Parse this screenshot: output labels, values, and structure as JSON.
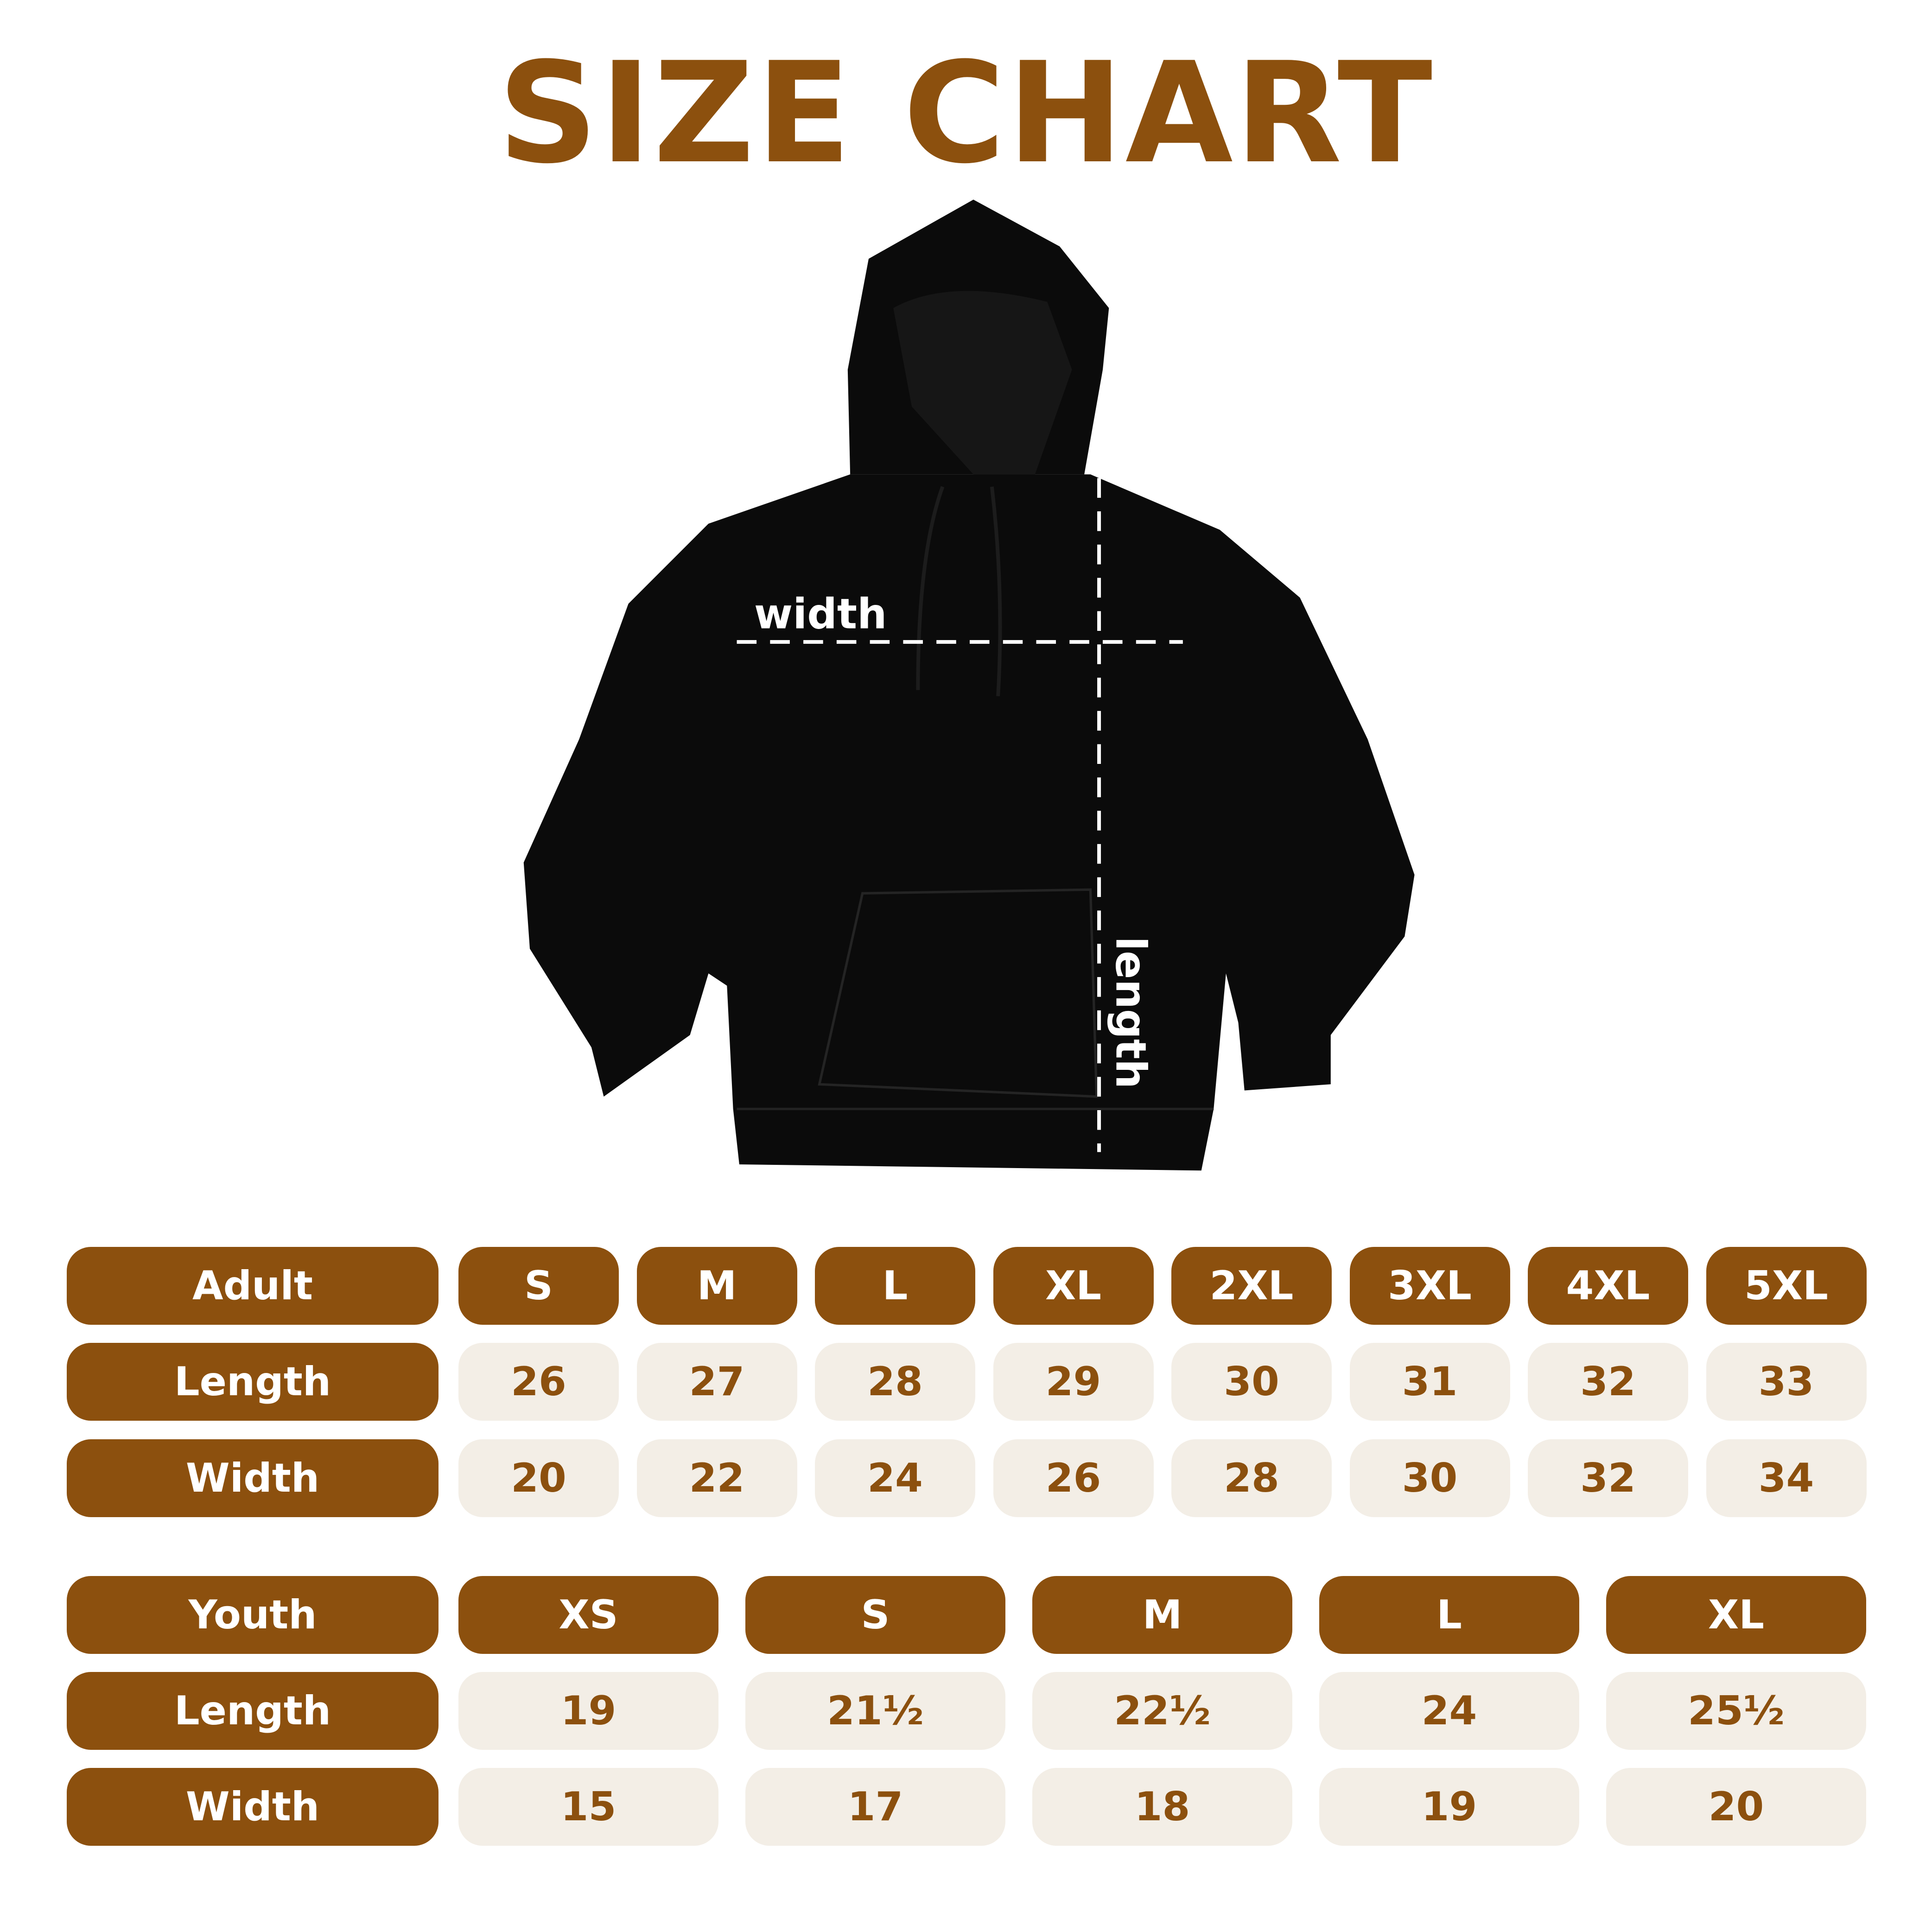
{
  "title": "SIZE CHART",
  "diagram": {
    "width_label": "width",
    "length_label": "length"
  },
  "colors": {
    "brand": "#8C500E",
    "cell_bg": "#F3EEE6",
    "garment": "#0b0b0b"
  },
  "adult": {
    "header": "Adult",
    "sizes": [
      "S",
      "M",
      "L",
      "XL",
      "2XL",
      "3XL",
      "4XL",
      "5XL"
    ],
    "rows": [
      {
        "label": "Length",
        "values": [
          "26",
          "27",
          "28",
          "29",
          "30",
          "31",
          "32",
          "33"
        ]
      },
      {
        "label": "Width",
        "values": [
          "20",
          "22",
          "24",
          "26",
          "28",
          "30",
          "32",
          "34"
        ]
      }
    ]
  },
  "youth": {
    "header": "Youth",
    "sizes": [
      "XS",
      "S",
      "M",
      "L",
      "XL"
    ],
    "rows": [
      {
        "label": "Length",
        "values": [
          "19",
          "21½",
          "22½",
          "24",
          "25½"
        ]
      },
      {
        "label": "Width",
        "values": [
          "15",
          "17",
          "18",
          "19",
          "20"
        ]
      }
    ]
  }
}
